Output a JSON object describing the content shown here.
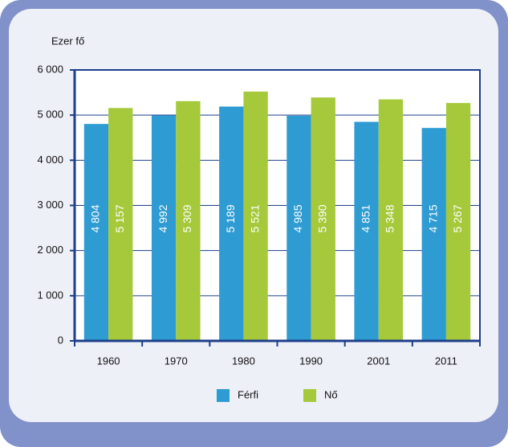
{
  "chart_data": {
    "type": "bar",
    "y_label": "Ezer fő",
    "categories": [
      "1960",
      "1970",
      "1980",
      "1990",
      "2001",
      "2011"
    ],
    "series": [
      {
        "name": "Férfi",
        "color": "#2e9bd3",
        "values": [
          4804,
          4992,
          5189,
          4985,
          4851,
          4715
        ],
        "value_labels": [
          "4 804",
          "4 992",
          "5 189",
          "4 985",
          "4 851",
          "4 715"
        ]
      },
      {
        "name": "Nő",
        "color": "#a5c93a",
        "values": [
          5157,
          5309,
          5521,
          5390,
          5348,
          5267
        ],
        "value_labels": [
          "5 157",
          "5 309",
          "5 521",
          "5 390",
          "5 348",
          "5 267"
        ]
      }
    ],
    "ylim": [
      0,
      6000
    ],
    "yticks": [
      0,
      {
        "value": 1000,
        "label": "1 000"
      },
      {
        "value": 2000,
        "label": "2 000"
      },
      {
        "value": 3000,
        "label": "3 000"
      },
      {
        "value": 4000,
        "label": "4 000"
      },
      {
        "value": 5000,
        "label": "5 000"
      },
      {
        "value": 6000,
        "label": "6 000"
      }
    ],
    "grid": true,
    "legend": "bottom"
  }
}
